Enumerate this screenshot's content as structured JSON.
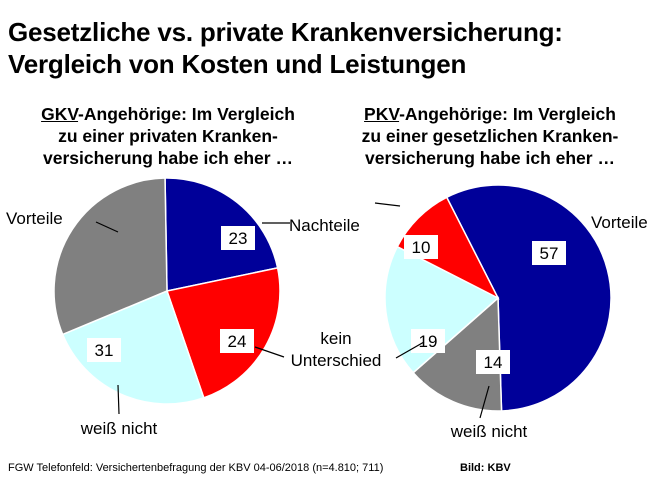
{
  "title_line1": "Gesetzliche vs. private Krankenversicherung:",
  "title_line2": "Vergleich von Kosten und Leistungen",
  "footer": "FGW Telefonfeld: Versichertenbefragung der KBV 04-06/2018 (n=4.810; 711)",
  "credit": "Bild: KBV",
  "colors": {
    "vorteile": "#000099",
    "nachteile": "#ff0000",
    "kein_unterschied": "#ccffff",
    "weiss_nicht": "#808080"
  },
  "chart_data": [
    {
      "type": "pie",
      "title_abbr": "GKV",
      "title_rest1": "-Angehörige: Im Vergleich",
      "title_line2": "zu einer privaten Kranken-",
      "title_line3": "versicherung habe ich eher …",
      "slices": [
        {
          "label": "Vorteile",
          "value": 22,
          "color": "#000099"
        },
        {
          "label": "Nachteile",
          "value": 23,
          "color": "#ff0000"
        },
        {
          "label": "kein Unterschied",
          "value": 24,
          "color": "#ccffff"
        },
        {
          "label": "weiß nicht",
          "value": 31,
          "color": "#808080"
        }
      ]
    },
    {
      "type": "pie",
      "title_abbr": "PKV",
      "title_rest1": "-Angehörige: Im Vergleich",
      "title_line2": "zu einer gesetzlichen Kranken-",
      "title_line3": "versicherung habe ich eher …",
      "slices": [
        {
          "label": "Vorteile",
          "value": 57,
          "color": "#000099"
        },
        {
          "label": "weiß nicht",
          "value": 14,
          "color": "#808080"
        },
        {
          "label": "kein Unterschied",
          "value": 19,
          "color": "#ccffff"
        },
        {
          "label": "Nachteile",
          "value": 10,
          "color": "#ff0000"
        }
      ]
    }
  ],
  "labels": {
    "vorteile_left": "Vorteile",
    "nachteile": "Nachteile",
    "vorteile_right": "Vorteile",
    "kein": "kein",
    "unterschied": "Unterschied",
    "weiss_nicht_left": "weiß nicht",
    "weiss_nicht_right": "weiß nicht"
  }
}
